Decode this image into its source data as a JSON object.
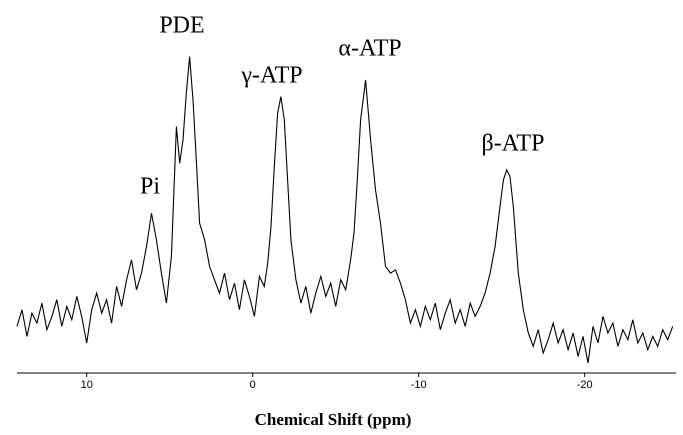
{
  "chart_data": {
    "type": "line",
    "x_label": "Chemical Shift (ppm)",
    "annotations": [
      "Pi",
      "PDE",
      "γ-ATP",
      "α-ATP",
      "β-ATP"
    ],
    "x": [
      14.2,
      13.9,
      13.6,
      13.3,
      13.0,
      12.7,
      12.4,
      12.1,
      11.8,
      11.5,
      11.2,
      10.9,
      10.6,
      10.3,
      10.0,
      9.7,
      9.4,
      9.1,
      8.8,
      8.5,
      8.2,
      7.9,
      7.6,
      7.3,
      7.0,
      6.7,
      6.4,
      6.1,
      5.8,
      5.5,
      5.2,
      4.9,
      4.6,
      4.4,
      4.2,
      4.0,
      3.8,
      3.6,
      3.4,
      3.2,
      2.9,
      2.6,
      2.3,
      2.0,
      1.7,
      1.4,
      1.1,
      0.8,
      0.5,
      0.2,
      -0.1,
      -0.4,
      -0.7,
      -0.9,
      -1.1,
      -1.3,
      -1.5,
      -1.7,
      -1.9,
      -2.1,
      -2.3,
      -2.6,
      -2.9,
      -3.2,
      -3.5,
      -3.8,
      -4.1,
      -4.4,
      -4.7,
      -5.0,
      -5.3,
      -5.6,
      -5.9,
      -6.1,
      -6.3,
      -6.5,
      -6.8,
      -7.1,
      -7.4,
      -7.7,
      -8.0,
      -8.3,
      -8.6,
      -8.9,
      -9.2,
      -9.5,
      -9.8,
      -10.1,
      -10.4,
      -10.7,
      -11.0,
      -11.3,
      -11.6,
      -11.9,
      -12.2,
      -12.5,
      -12.8,
      -13.1,
      -13.4,
      -13.7,
      -14.0,
      -14.3,
      -14.6,
      -14.9,
      -15.1,
      -15.3,
      -15.5,
      -15.7,
      -16.0,
      -16.3,
      -16.6,
      -16.9,
      -17.2,
      -17.5,
      -17.8,
      -18.1,
      -18.4,
      -18.7,
      -19.0,
      -19.3,
      -19.6,
      -19.9,
      -20.2,
      -20.5,
      -20.8,
      -21.1,
      -21.4,
      -21.7,
      -22.0,
      -22.3,
      -22.6,
      -22.9,
      -23.2,
      -23.5,
      -23.8,
      -24.1,
      -24.4,
      -24.7,
      -25.0,
      -25.3
    ],
    "values": [
      14,
      19,
      11,
      18,
      15,
      21,
      13,
      17,
      22,
      14,
      20,
      16,
      23,
      17,
      9,
      19,
      24,
      18,
      22,
      15,
      26,
      20,
      28,
      34,
      25,
      30,
      38,
      48,
      40,
      30,
      21,
      35,
      74,
      63,
      70,
      84,
      95,
      82,
      64,
      45,
      40,
      32,
      28,
      24,
      30,
      22,
      27,
      19,
      28,
      23,
      17,
      29,
      26,
      33,
      44,
      62,
      78,
      83,
      76,
      58,
      40,
      28,
      21,
      26,
      18,
      24,
      29,
      23,
      27,
      20,
      28,
      25,
      34,
      42,
      58,
      76,
      88,
      70,
      55,
      45,
      32,
      30,
      31,
      27,
      22,
      15,
      19,
      14,
      20,
      16,
      21,
      13,
      18,
      22,
      15,
      19,
      14,
      21,
      17,
      20,
      24,
      30,
      38,
      50,
      58,
      61,
      59,
      50,
      30,
      19,
      12,
      8,
      13,
      6,
      10,
      15,
      9,
      13,
      7,
      12,
      5,
      11,
      3,
      14,
      9,
      17,
      12,
      15,
      8,
      13,
      10,
      16,
      9,
      12,
      7,
      11,
      8,
      13,
      10,
      14
    ],
    "color": "#000000",
    "xlim": [
      14.2,
      -25.5
    ],
    "ylim": [
      0,
      100
    ],
    "xticks": [
      10,
      0,
      -10,
      -20
    ]
  }
}
